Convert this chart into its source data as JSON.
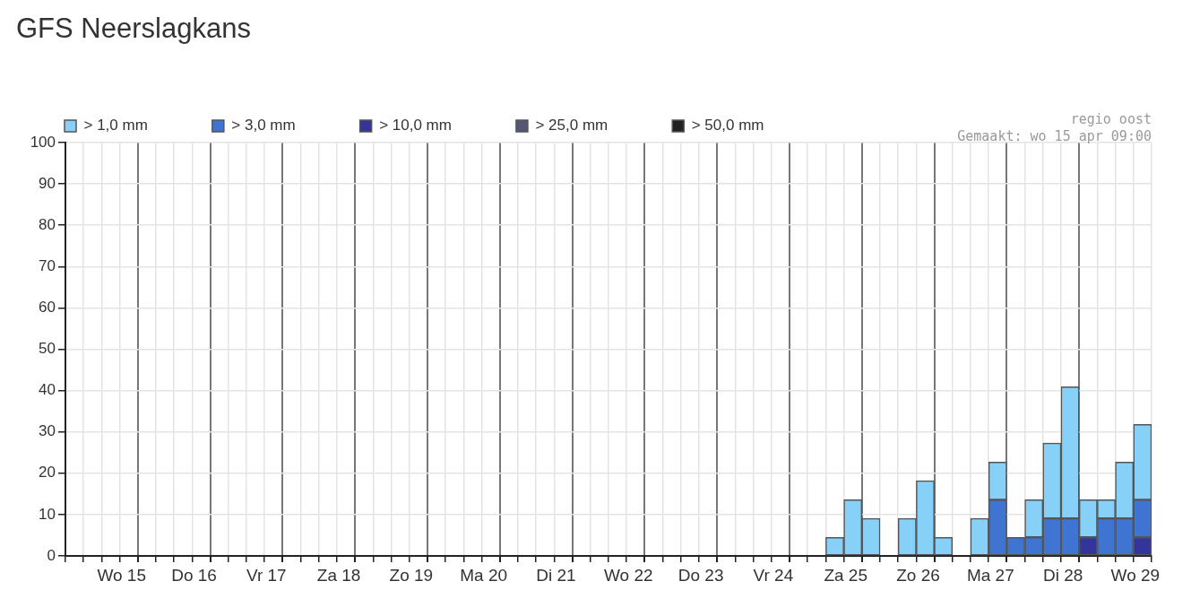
{
  "chart_data": {
    "type": "bar",
    "title": "GFS Neerslagkans",
    "annotations": [
      "regio oost",
      "Gemaakt: wo 15 apr 09:00"
    ],
    "categories": [
      null,
      null,
      null,
      "Wo 15",
      null,
      null,
      null,
      "Do 16",
      null,
      null,
      null,
      "Vr 17",
      null,
      null,
      null,
      "Za 18",
      null,
      null,
      null,
      "Zo 19",
      null,
      null,
      null,
      "Ma 20",
      null,
      null,
      null,
      "Di 21",
      null,
      null,
      null,
      "Wo 22",
      null,
      null,
      null,
      "Do 23",
      null,
      null,
      null,
      "Vr 24",
      null,
      null,
      null,
      "Za 25",
      null,
      null,
      null,
      "Zo 26",
      null,
      null,
      null,
      "Ma 27",
      null,
      null,
      null,
      "Di 28",
      null,
      null,
      null,
      "Wo 29"
    ],
    "stacked": true,
    "series": [
      {
        "name": "> 50,0 mm",
        "color": "#222222",
        "values": [
          null,
          null,
          null,
          null,
          null,
          null,
          null,
          null,
          null,
          null,
          null,
          null,
          null,
          null,
          null,
          null,
          null,
          null,
          null,
          null,
          null,
          null,
          null,
          null,
          null,
          null,
          null,
          null,
          null,
          null,
          null,
          null,
          null,
          null,
          null,
          null,
          null,
          null,
          null,
          null,
          null,
          null,
          null,
          null,
          null,
          null,
          null,
          null,
          null,
          null,
          null,
          null,
          null,
          null,
          null,
          null,
          null,
          null,
          null,
          null
        ]
      },
      {
        "name": "> 25,0 mm",
        "color": "#555577",
        "values": [
          null,
          null,
          null,
          null,
          null,
          null,
          null,
          null,
          null,
          null,
          null,
          null,
          null,
          null,
          null,
          null,
          null,
          null,
          null,
          null,
          null,
          null,
          null,
          null,
          null,
          null,
          null,
          null,
          null,
          null,
          null,
          null,
          null,
          null,
          null,
          null,
          null,
          null,
          null,
          null,
          null,
          null,
          null,
          null,
          null,
          null,
          null,
          null,
          null,
          null,
          null,
          null,
          null,
          null,
          null,
          null,
          null,
          null,
          null,
          null
        ]
      },
      {
        "name": "> 10,0 mm",
        "color": "#34359a",
        "values": [
          null,
          null,
          null,
          null,
          null,
          null,
          null,
          null,
          null,
          null,
          null,
          null,
          null,
          null,
          null,
          null,
          null,
          null,
          null,
          null,
          null,
          null,
          null,
          null,
          null,
          null,
          null,
          null,
          null,
          null,
          null,
          null,
          null,
          null,
          null,
          null,
          null,
          null,
          null,
          null,
          null,
          null,
          null,
          null,
          null,
          null,
          null,
          null,
          null,
          null,
          null,
          null,
          null,
          null,
          null,
          null,
          4.5,
          null,
          null,
          4.5
        ]
      },
      {
        "name": "> 3,0 mm",
        "color": "#3f74d2",
        "values": [
          null,
          null,
          null,
          null,
          null,
          null,
          null,
          null,
          null,
          null,
          null,
          null,
          null,
          null,
          null,
          null,
          null,
          null,
          null,
          null,
          null,
          null,
          null,
          null,
          null,
          null,
          null,
          null,
          null,
          null,
          null,
          null,
          null,
          null,
          null,
          null,
          null,
          null,
          null,
          null,
          null,
          null,
          null,
          null,
          null,
          null,
          null,
          null,
          null,
          null,
          null,
          13.6,
          4.5,
          4.5,
          9.1,
          9.1,
          null,
          9.1,
          9.1,
          9.1
        ]
      },
      {
        "name": "> 1,0 mm",
        "color": "#87d0f8",
        "values": [
          null,
          null,
          null,
          null,
          null,
          null,
          null,
          null,
          null,
          null,
          null,
          null,
          null,
          null,
          null,
          null,
          null,
          null,
          null,
          null,
          null,
          null,
          null,
          null,
          null,
          null,
          null,
          null,
          null,
          null,
          null,
          null,
          null,
          null,
          null,
          null,
          null,
          null,
          null,
          null,
          null,
          null,
          4.5,
          13.6,
          9.1,
          null,
          9.1,
          18.2,
          4.5,
          null,
          9.1,
          9.1,
          null,
          9.1,
          18.2,
          31.8,
          9.1,
          4.5,
          13.6,
          18.2
        ]
      }
    ],
    "ylim": [
      0,
      100
    ],
    "yticks": [
      0,
      10,
      20,
      30,
      40,
      50,
      60,
      70,
      80,
      90,
      100
    ],
    "grid": true,
    "legend": "top left"
  }
}
